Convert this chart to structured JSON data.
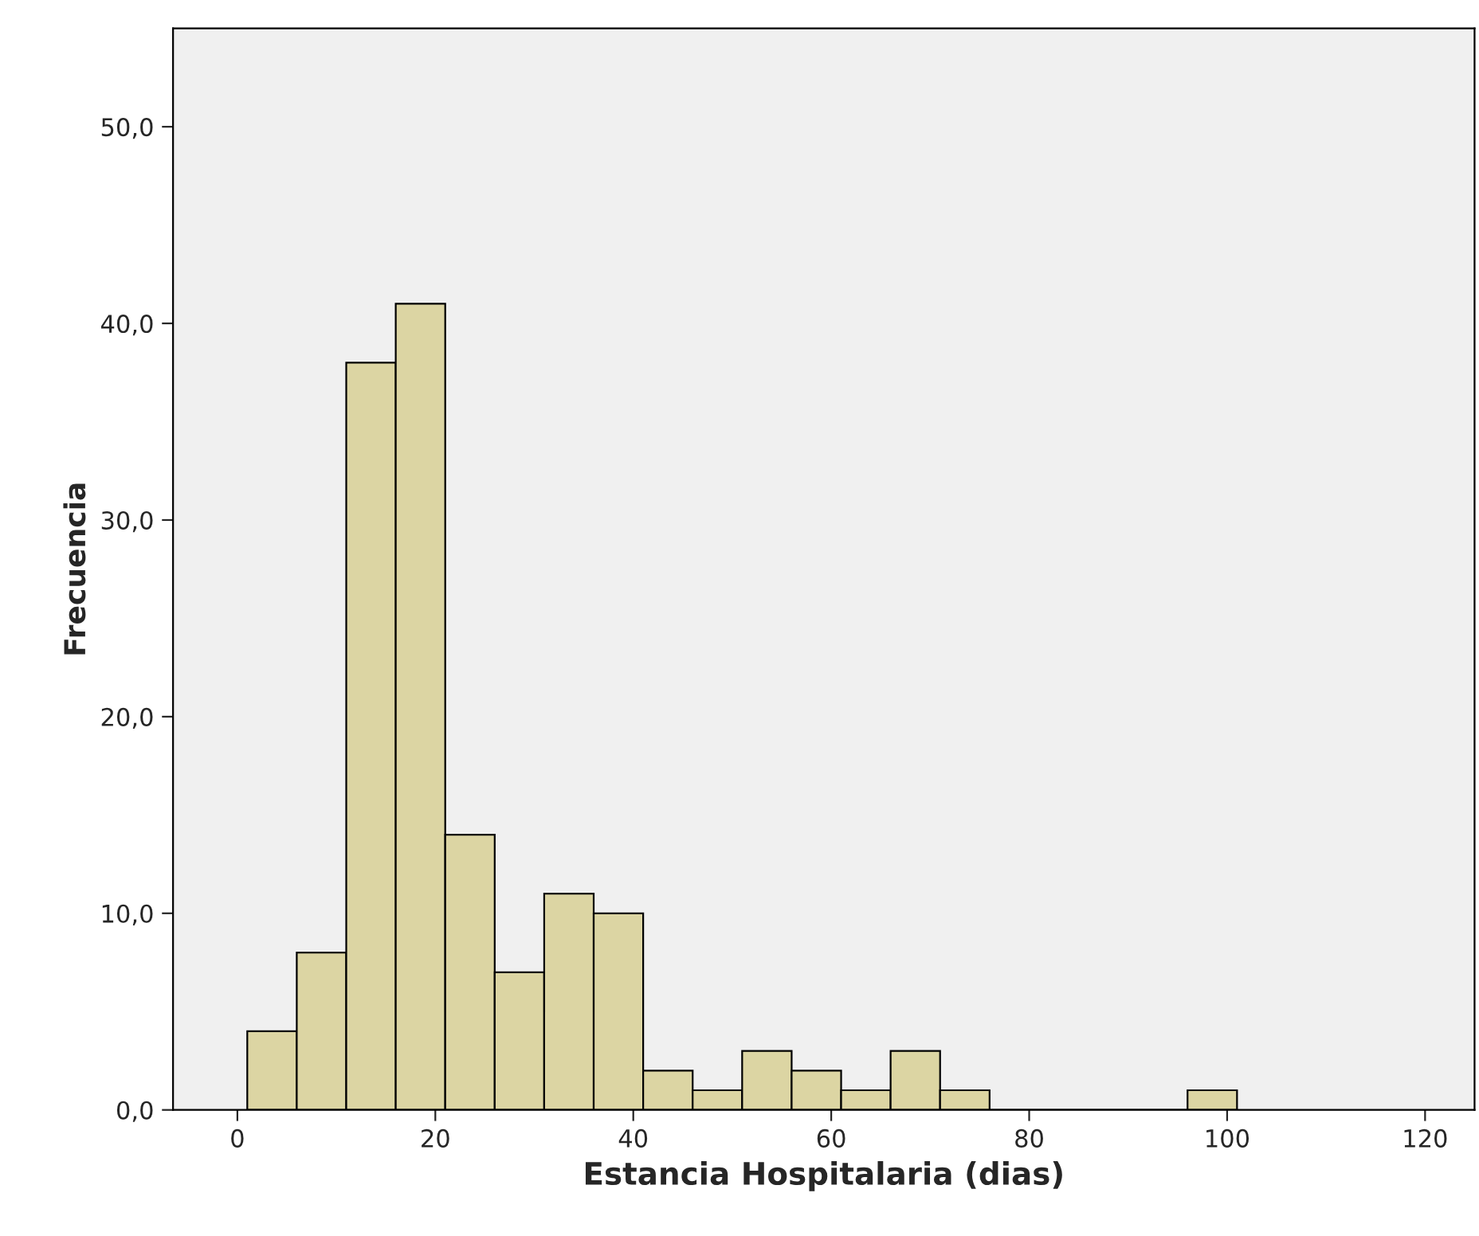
{
  "chart_data": {
    "type": "histogram",
    "xlabel": "Estancia Hospitalaria (dias)",
    "ylabel": "Frecuencia",
    "bins": [
      1,
      6,
      11,
      16,
      21,
      26,
      31,
      36,
      41,
      46,
      51,
      56,
      61,
      66,
      71,
      76,
      81,
      86,
      91,
      96,
      101
    ],
    "values": [
      4,
      8,
      38,
      41,
      14,
      7,
      11,
      10,
      2,
      1,
      3,
      2,
      1,
      3,
      1,
      0,
      0,
      0,
      0,
      1
    ],
    "color": "#dcd5a3",
    "xlim": [
      -6.5,
      125
    ],
    "xticks": [
      0,
      20,
      40,
      60,
      80,
      100,
      120
    ],
    "ylim": [
      0,
      55
    ],
    "yticks": [
      {
        "value": 0,
        "label": "0,0"
      },
      {
        "value": 10,
        "label": "10,0"
      },
      {
        "value": 20,
        "label": "20,0"
      },
      {
        "value": 30,
        "label": "30,0"
      },
      {
        "value": 40,
        "label": "40,0"
      },
      {
        "value": 50,
        "label": "50,0"
      }
    ],
    "grid": false
  }
}
